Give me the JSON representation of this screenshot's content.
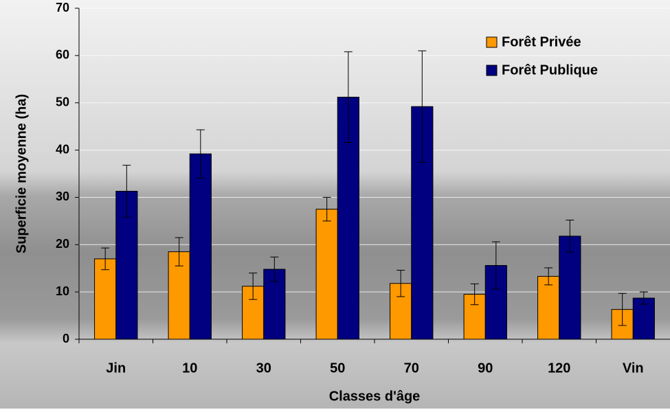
{
  "chart_data": {
    "type": "bar",
    "x_label": "Classes d'âge",
    "y_label": "Superficie moyenne (ha)",
    "categories": [
      "Jin",
      "10",
      "30",
      "50",
      "70",
      "90",
      "120",
      "Vin"
    ],
    "series": [
      {
        "name": "Forêt Privée",
        "color": "#ff9900",
        "values": [
          17,
          18.5,
          11.2,
          27.5,
          11.8,
          9.5,
          13.3,
          6.3
        ],
        "errors": [
          2.3,
          3,
          2.8,
          2.5,
          2.8,
          2.2,
          1.8,
          3.4
        ]
      },
      {
        "name": "Forêt Publique",
        "color": "#000080",
        "values": [
          31.3,
          39.2,
          14.8,
          51.2,
          49.2,
          15.6,
          21.8,
          8.7
        ],
        "errors": [
          5.5,
          5.1,
          2.6,
          9.6,
          11.8,
          5,
          3.4,
          1.3
        ]
      }
    ],
    "ylim": [
      0,
      70
    ],
    "yticks": [
      0,
      10,
      20,
      30,
      40,
      50,
      60,
      70
    ],
    "grid": true,
    "legend": "upper right"
  }
}
